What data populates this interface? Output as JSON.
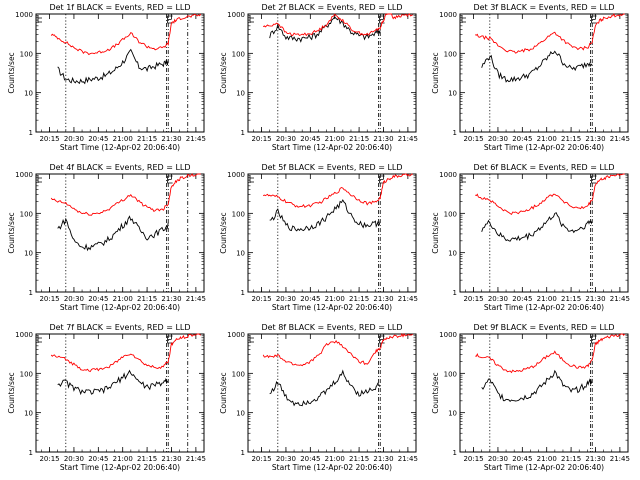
{
  "figure": {
    "shared": {
      "ylabel": "Counts/sec",
      "xlabel": "Start Time (12-Apr-02 20:06:40)",
      "ytick_labels": [
        "1",
        "10",
        "100",
        "1000"
      ],
      "xtick_labels": [
        "20:15",
        "20:30",
        "20:45",
        "21:00",
        "21:15",
        "21:30",
        "21:45"
      ],
      "colors": {
        "events": "#000000",
        "lld": "#ff0000"
      }
    }
  },
  "chart_data": [
    {
      "type": "line",
      "title": "Det 1f BLACK = Events, RED = LLD",
      "xlabel": "Start Time (12-Apr-02 20:06:40)",
      "ylabel": "Counts/sec",
      "y_scale": "log",
      "ylim": [
        1,
        1000
      ],
      "xlim": [
        "20:06:40",
        "21:50"
      ],
      "x": [
        "20:16",
        "20:20",
        "20:25",
        "20:30",
        "20:35",
        "20:40",
        "20:45",
        "20:50",
        "20:55",
        "21:00",
        "21:05",
        "21:10",
        "21:15",
        "21:20",
        "21:25",
        "21:28",
        "21:30",
        "21:33",
        "21:36",
        "21:40",
        "21:44",
        "21:48"
      ],
      "series": [
        {
          "name": "Events",
          "values": [
            null,
            40,
            22,
            20,
            20,
            22,
            24,
            28,
            38,
            60,
            110,
            45,
            40,
            48,
            55,
            60,
            null,
            null,
            null,
            null,
            null,
            null
          ]
        },
        {
          "name": "LLD",
          "values": [
            300,
            250,
            190,
            140,
            110,
            100,
            105,
            120,
            150,
            220,
            320,
            200,
            150,
            130,
            140,
            180,
            600,
            700,
            800,
            850,
            900,
            950
          ]
        }
      ],
      "vlines": [
        "20:25",
        "21:27",
        "21:28",
        "21:40"
      ]
    },
    {
      "type": "line",
      "title": "Det 2f BLACK = Events, RED = LLD",
      "xlabel": "Start Time (12-Apr-02 20:06:40)",
      "ylabel": "Counts/sec",
      "y_scale": "log",
      "ylim": [
        1,
        1000
      ],
      "xlim": [
        "20:06:40",
        "21:50"
      ],
      "x": [
        "20:16",
        "20:20",
        "20:25",
        "20:30",
        "20:35",
        "20:40",
        "20:45",
        "20:50",
        "20:55",
        "21:00",
        "21:05",
        "21:10",
        "21:15",
        "21:20",
        "21:25",
        "21:28",
        "21:30",
        "21:33",
        "21:36",
        "21:40",
        "21:44",
        "21:48"
      ],
      "series": [
        {
          "name": "Events",
          "values": [
            null,
            280,
            500,
            260,
            240,
            240,
            260,
            320,
            500,
            850,
            600,
            360,
            280,
            260,
            320,
            400,
            null,
            null,
            null,
            null,
            null,
            null
          ]
        },
        {
          "name": "LLD",
          "values": [
            480,
            500,
            600,
            330,
            300,
            300,
            320,
            380,
            560,
            950,
            700,
            420,
            330,
            300,
            380,
            450,
            700,
            1300,
            800,
            900,
            950,
            1000
          ]
        }
      ],
      "vlines": [
        "20:25",
        "21:27",
        "21:28"
      ]
    },
    {
      "type": "line",
      "title": "Det 3f BLACK = Events, RED = LLD",
      "xlabel": "Start Time (12-Apr-02 20:06:40)",
      "ylabel": "Counts/sec",
      "y_scale": "log",
      "ylim": [
        1,
        1000
      ],
      "xlim": [
        "20:06:40",
        "21:50"
      ],
      "x": [
        "20:16",
        "20:20",
        "20:25",
        "20:30",
        "20:35",
        "20:40",
        "20:45",
        "20:50",
        "20:55",
        "21:00",
        "21:05",
        "21:10",
        "21:15",
        "21:20",
        "21:25",
        "21:28",
        "21:30",
        "21:33",
        "21:36",
        "21:40",
        "21:44",
        "21:48"
      ],
      "series": [
        {
          "name": "Events",
          "values": [
            null,
            45,
            90,
            30,
            22,
            22,
            25,
            30,
            45,
            75,
            120,
            60,
            40,
            45,
            55,
            60,
            null,
            null,
            null,
            null,
            null,
            null
          ]
        },
        {
          "name": "LLD",
          "values": [
            290,
            260,
            240,
            160,
            120,
            105,
            115,
            130,
            170,
            250,
            340,
            220,
            150,
            130,
            140,
            200,
            500,
            700,
            800,
            900,
            950,
            1000
          ]
        }
      ],
      "vlines": [
        "20:25",
        "21:27",
        "21:28"
      ]
    },
    {
      "type": "line",
      "title": "Det 4f BLACK = Events, RED = LLD",
      "xlabel": "Start Time (12-Apr-02 20:06:40)",
      "ylabel": "Counts/sec",
      "y_scale": "log",
      "ylim": [
        1,
        1000
      ],
      "xlim": [
        "20:06:40",
        "21:50"
      ],
      "x": [
        "20:16",
        "20:20",
        "20:25",
        "20:30",
        "20:35",
        "20:40",
        "20:45",
        "20:50",
        "20:55",
        "21:00",
        "21:05",
        "21:10",
        "21:15",
        "21:20",
        "21:25",
        "21:28",
        "21:30",
        "21:33",
        "21:36",
        "21:40",
        "21:44",
        "21:48"
      ],
      "series": [
        {
          "name": "Events",
          "values": [
            null,
            40,
            70,
            20,
            14,
            14,
            16,
            20,
            30,
            50,
            80,
            40,
            25,
            30,
            40,
            50,
            null,
            null,
            null,
            null,
            null,
            null
          ]
        },
        {
          "name": "LLD",
          "values": [
            230,
            200,
            180,
            130,
            100,
            95,
            100,
            120,
            160,
            220,
            300,
            200,
            140,
            120,
            130,
            180,
            500,
            650,
            800,
            900,
            950,
            1000
          ]
        }
      ],
      "vlines": [
        "20:25",
        "21:27",
        "21:28",
        "21:40"
      ]
    },
    {
      "type": "line",
      "title": "Det 5f BLACK = Events, RED = LLD",
      "xlabel": "Start Time (12-Apr-02 20:06:40)",
      "ylabel": "Counts/sec",
      "y_scale": "log",
      "ylim": [
        1,
        1000
      ],
      "xlim": [
        "20:06:40",
        "21:50"
      ],
      "x": [
        "20:16",
        "20:20",
        "20:25",
        "20:30",
        "20:35",
        "20:40",
        "20:45",
        "20:50",
        "20:55",
        "21:00",
        "21:05",
        "21:10",
        "21:15",
        "21:20",
        "21:25",
        "21:28",
        "21:30",
        "21:33",
        "21:36",
        "21:40",
        "21:44",
        "21:48"
      ],
      "series": [
        {
          "name": "Events",
          "values": [
            null,
            60,
            110,
            50,
            40,
            40,
            45,
            55,
            80,
            130,
            200,
            90,
            55,
            50,
            55,
            60,
            null,
            null,
            null,
            null,
            null,
            null
          ]
        },
        {
          "name": "LLD",
          "values": [
            300,
            280,
            260,
            200,
            160,
            150,
            160,
            180,
            240,
            320,
            450,
            300,
            220,
            180,
            190,
            250,
            600,
            750,
            850,
            900,
            950,
            1000
          ]
        }
      ],
      "vlines": [
        "20:25",
        "21:27",
        "21:28"
      ]
    },
    {
      "type": "line",
      "title": "Det 6f BLACK = Events, RED = LLD",
      "xlabel": "Start Time (12-Apr-02 20:06:40)",
      "ylabel": "Counts/sec",
      "y_scale": "log",
      "ylim": [
        1,
        1000
      ],
      "xlim": [
        "20:06:40",
        "21:50"
      ],
      "x": [
        "20:16",
        "20:20",
        "20:25",
        "20:30",
        "20:35",
        "20:40",
        "20:45",
        "20:50",
        "20:55",
        "21:00",
        "21:05",
        "21:10",
        "21:15",
        "21:20",
        "21:25",
        "21:28",
        "21:30",
        "21:33",
        "21:36",
        "21:40",
        "21:44",
        "21:48"
      ],
      "series": [
        {
          "name": "Events",
          "values": [
            null,
            40,
            60,
            30,
            22,
            22,
            24,
            28,
            40,
            60,
            100,
            50,
            35,
            40,
            55,
            65,
            null,
            null,
            null,
            null,
            null,
            null
          ]
        },
        {
          "name": "LLD",
          "values": [
            300,
            250,
            220,
            150,
            110,
            100,
            110,
            130,
            170,
            250,
            320,
            210,
            150,
            130,
            150,
            220,
            550,
            700,
            800,
            900,
            950,
            1000
          ]
        }
      ],
      "vlines": [
        "20:25",
        "21:27",
        "21:28"
      ]
    },
    {
      "type": "line",
      "title": "Det 7f BLACK = Events, RED = LLD",
      "xlabel": "Start Time (12-Apr-02 20:06:40)",
      "ylabel": "Counts/sec",
      "y_scale": "log",
      "ylim": [
        1,
        1000
      ],
      "xlim": [
        "20:06:40",
        "21:50"
      ],
      "x": [
        "20:16",
        "20:20",
        "20:25",
        "20:30",
        "20:35",
        "20:40",
        "20:45",
        "20:50",
        "20:55",
        "21:00",
        "21:05",
        "21:10",
        "21:15",
        "21:20",
        "21:25",
        "21:28",
        "21:30",
        "21:33",
        "21:36",
        "21:40",
        "21:44",
        "21:48"
      ],
      "series": [
        {
          "name": "Events",
          "values": [
            null,
            55,
            60,
            42,
            35,
            33,
            35,
            40,
            55,
            80,
            110,
            60,
            45,
            50,
            60,
            70,
            null,
            null,
            null,
            null,
            null,
            null
          ]
        },
        {
          "name": "LLD",
          "values": [
            290,
            260,
            230,
            170,
            130,
            120,
            125,
            140,
            180,
            260,
            330,
            220,
            160,
            140,
            150,
            200,
            550,
            700,
            800,
            900,
            950,
            1000
          ]
        }
      ],
      "vlines": [
        "20:25",
        "21:27",
        "21:28",
        "21:40"
      ]
    },
    {
      "type": "line",
      "title": "Det 8f BLACK = Events, RED = LLD",
      "xlabel": "Start Time (12-Apr-02 20:06:40)",
      "ylabel": "Counts/sec",
      "y_scale": "log",
      "ylim": [
        1,
        1000
      ],
      "xlim": [
        "20:06:40",
        "21:50"
      ],
      "x": [
        "20:16",
        "20:20",
        "20:25",
        "20:30",
        "20:35",
        "20:40",
        "20:45",
        "20:50",
        "20:55",
        "21:00",
        "21:05",
        "21:10",
        "21:15",
        "21:20",
        "21:25",
        "21:28",
        "21:30",
        "21:33",
        "21:36",
        "21:40",
        "21:44",
        "21:48"
      ],
      "series": [
        {
          "name": "Events",
          "values": [
            null,
            30,
            60,
            25,
            18,
            18,
            20,
            25,
            35,
            60,
            100,
            50,
            30,
            35,
            45,
            55,
            null,
            null,
            null,
            null,
            null,
            null
          ]
        },
        {
          "name": "LLD",
          "values": [
            280,
            260,
            280,
            200,
            170,
            160,
            200,
            280,
            550,
            650,
            500,
            300,
            200,
            180,
            350,
            450,
            700,
            800,
            850,
            900,
            950,
            1000
          ]
        }
      ],
      "vlines": [
        "20:25",
        "21:27",
        "21:28"
      ]
    },
    {
      "type": "line",
      "title": "Det 9f BLACK = Events, RED = LLD",
      "xlabel": "Start Time (12-Apr-02 20:06:40)",
      "ylabel": "Counts/sec",
      "y_scale": "log",
      "ylim": [
        1,
        1000
      ],
      "xlim": [
        "20:06:40",
        "21:50"
      ],
      "x": [
        "20:16",
        "20:20",
        "20:25",
        "20:30",
        "20:35",
        "20:40",
        "20:45",
        "20:50",
        "20:55",
        "21:00",
        "21:05",
        "21:10",
        "21:15",
        "21:20",
        "21:25",
        "21:28",
        "21:30",
        "21:33",
        "21:36",
        "21:40",
        "21:44",
        "21:48"
      ],
      "series": [
        {
          "name": "Events",
          "values": [
            null,
            40,
            70,
            30,
            22,
            22,
            24,
            28,
            40,
            65,
            110,
            50,
            35,
            40,
            55,
            65,
            null,
            null,
            null,
            null,
            null,
            null
          ]
        },
        {
          "name": "LLD",
          "values": [
            300,
            260,
            240,
            160,
            120,
            110,
            120,
            140,
            180,
            270,
            340,
            220,
            160,
            140,
            150,
            220,
            550,
            700,
            800,
            900,
            950,
            1000
          ]
        }
      ],
      "vlines": [
        "20:25",
        "21:27",
        "21:28"
      ]
    }
  ]
}
